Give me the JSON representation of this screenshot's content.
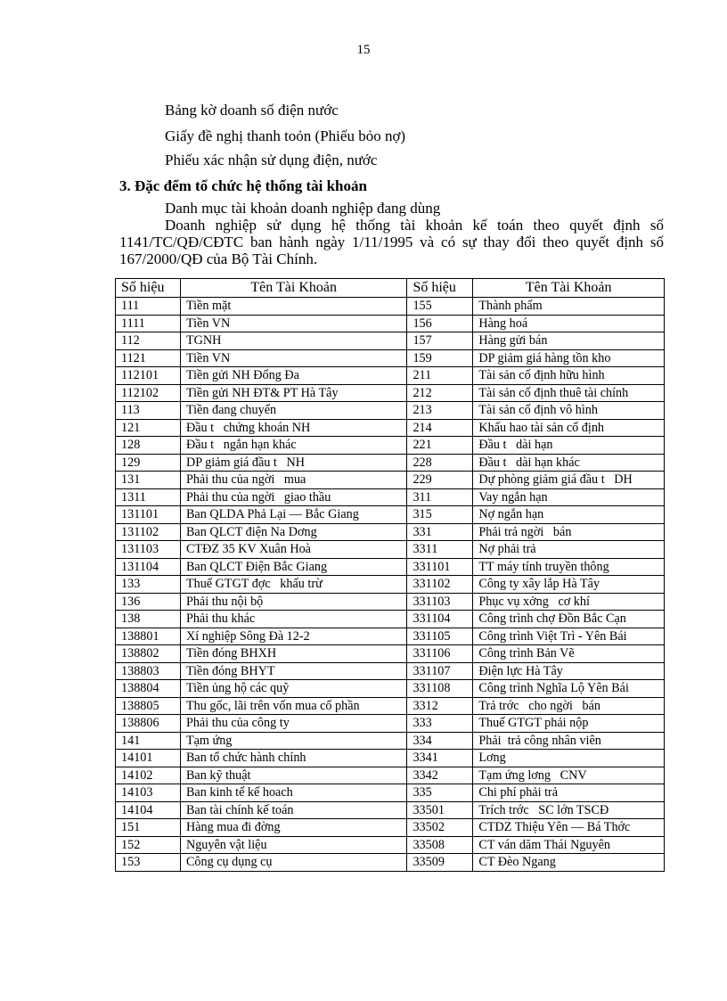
{
  "page_number": "15",
  "lines": [
    "Bảng kờ doanh số điện nước",
    "Giấy đề nghị thanh toỏn (Phiếu bỏo nợ)",
    "Phiếu xác nhận sử dụng điện, nước"
  ],
  "heading": "3. Đặc đểm tổ chức hệ thống tài khoản",
  "subheading": "Danh mục tài khoản doanh nghiệp đang dùng",
  "paragraph": "Doanh nghiệp sử dụng hệ thống tài khoản kế toán theo quyết định số 1141/TC/QĐ/CĐTC ban hành ngày 1/11/1995 và có sự thay đổi theo quyết định số 167/2000/QĐ của Bộ Tài Chính.",
  "table": {
    "headers": [
      "Số hiệu",
      "Tên Tài Khoản",
      "Số hiệu",
      "Tên Tài Khoản"
    ],
    "rows": [
      [
        "111",
        "Tiền mặt",
        "155",
        "Thành phẩm"
      ],
      [
        "1111",
        "Tiền VN",
        "156",
        "Hàng hoá"
      ],
      [
        "112",
        "TGNH",
        "157",
        "Hàng gửi bán"
      ],
      [
        "1121",
        "Tiền VN",
        "159",
        "DP giảm giá hàng tồn kho"
      ],
      [
        "112101",
        "Tiền gửi NH Đống Đa",
        "211",
        "Tài sản cố định hữu hình"
      ],
      [
        "112102",
        "Tiền gửi NH ĐT& PT Hà Tây",
        "212",
        "Tài sản cố định thuê tài chính"
      ],
      [
        "113",
        "Tiền đang chuyển",
        "213",
        "Tài sản cố định vô hình"
      ],
      [
        "121",
        "Đầu t   chứng khoán NH",
        "214",
        "Khấu hao tài sản cố định"
      ],
      [
        "128",
        "Đầu t   ngắn hạn khác",
        "221",
        "Đầu t   dài hạn"
      ],
      [
        "129",
        "DP giảm giá đầu t   NH",
        "228",
        "Đầu t   dài hạn khác"
      ],
      [
        "131",
        "Phải thu của ngời   mua",
        "229",
        "Dự phòng giảm giá đầu t   DH"
      ],
      [
        "1311",
        "Phải thu của ngời   giao thầu",
        "311",
        "Vay ngắn hạn"
      ],
      [
        "131101",
        "Ban QLDA Phả Lại — Bắc Giang",
        "315",
        "Nợ ngắn hạn"
      ],
      [
        "131102",
        "Ban QLCT điện Na Dơng",
        "331",
        "Phải trả ngời   bán"
      ],
      [
        "131103",
        "CTĐZ 35 KV Xuân Hoà",
        "3311",
        "Nợ phải trả"
      ],
      [
        "131104",
        "Ban QLCT Điện Bắc Giang",
        "331101",
        "TT máy tính truyền thông"
      ],
      [
        "133",
        "Thuế GTGT đợc   khấu trừ",
        "331102",
        "Công ty xây lắp Hà Tây"
      ],
      [
        "136",
        "Phải thu nội bộ",
        "331103",
        "Phục vụ xởng   cơ khí"
      ],
      [
        "138",
        "Phải thu khác",
        "331104",
        "Công trình chợ Đồn Bắc Cạn"
      ],
      [
        "138801",
        "Xí nghiệp Sông Đà 12-2",
        "331105",
        "Công trình Việt Trì - Yên Bái"
      ],
      [
        "138802",
        "Tiền đóng BHXH",
        "331106",
        "Công trình Bản Vẽ"
      ],
      [
        "138803",
        "Tiền đóng BHYT",
        "331107",
        "Điện lực Hà Tây"
      ],
      [
        "138804",
        "Tiền ủng hộ các quỹ",
        "331108",
        "Công trình Nghĩa Lộ Yên Bái"
      ],
      [
        "138805",
        "Thu gốc, lãi trên vốn mua cổ phần",
        "3312",
        "Trả trớc   cho ngời   bán"
      ],
      [
        "138806",
        "Phải thu của công ty",
        "333",
        "Thuế GTGT phải nộp"
      ],
      [
        "141",
        "Tạm ứng",
        "334",
        "Phải  trả công nhân viên"
      ],
      [
        "14101",
        "Ban tổ chức hành chính",
        "3341",
        "Lơng"
      ],
      [
        "14102",
        "Ban kỹ thuật",
        "3342",
        "Tạm ứng lơng   CNV"
      ],
      [
        "14103",
        "Ban kinh tế kế hoach",
        "335",
        "Chi phí phải trả"
      ],
      [
        "14104",
        "Ban tài chính kế toán",
        "33501",
        "Trích trớc   SC lớn TSCĐ"
      ],
      [
        "151",
        "Hàng mua đi đờng",
        "33502",
        "CTDZ Thiệu Yên — Bá Thớc"
      ],
      [
        "152",
        "Nguyên vật liệu",
        "33508",
        "CT ván dăm Thái Nguyên"
      ],
      [
        "153",
        "Công cụ dụng cụ",
        "33509",
        "CT Đèo Ngang"
      ]
    ]
  }
}
